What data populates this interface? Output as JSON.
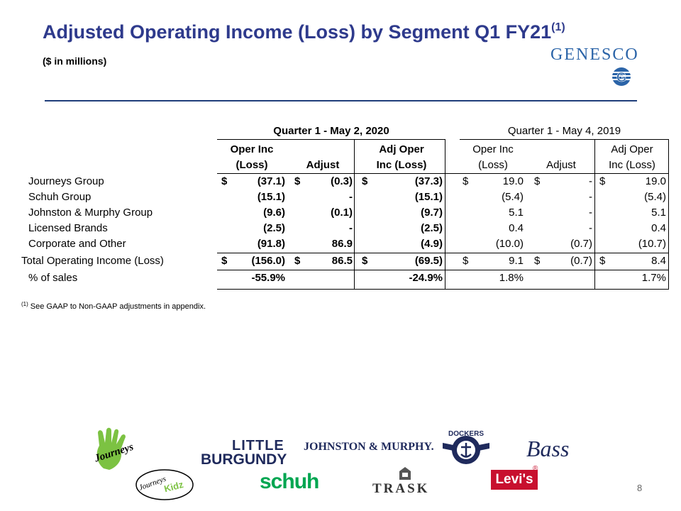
{
  "slide": {
    "title": "Adjusted Operating Income (Loss) by Segment Q1 FY21",
    "title_sup": "(1)",
    "subtitle": "($ in millions)",
    "brand": "GENESCO",
    "page_number": "8",
    "footnote_marker": "(1)",
    "footnote": "See GAAP to Non-GAAP adjustments in appendix."
  },
  "table": {
    "group_2020": "Quarter 1 - May 2, 2020",
    "group_2019": "Quarter 1 - May 4, 2019",
    "h2020_col1_l1": "Oper Inc",
    "h2020_col1_l2": "(Loss)",
    "h2020_col2": "Adjust",
    "h2020_col3_l1": "Adj Oper",
    "h2020_col3_l2": "Inc (Loss)",
    "h2019_col1_l1": "Oper Inc",
    "h2019_col1_l2": "(Loss)",
    "h2019_col2": "Adjust",
    "h2019_col3_l1": "Adj Oper",
    "h2019_col3_l2": "Inc (Loss)",
    "rows": [
      {
        "label": "Journeys Group",
        "d1": "$",
        "v1": "(37.1)",
        "d2": "$",
        "v2": "(0.3)",
        "d3": "$",
        "v3": "(37.3)",
        "d4": "$",
        "v4": "19.0",
        "d5": "$",
        "v5": "-",
        "d6": "$",
        "v6": "19.0"
      },
      {
        "label": "Schuh Group",
        "d1": "",
        "v1": "(15.1)",
        "d2": "",
        "v2": "-",
        "d3": "",
        "v3": "(15.1)",
        "d4": "",
        "v4": "(5.4)",
        "d5": "",
        "v5": "-",
        "d6": "",
        "v6": "(5.4)"
      },
      {
        "label": "Johnston & Murphy Group",
        "d1": "",
        "v1": "(9.6)",
        "d2": "",
        "v2": "(0.1)",
        "d3": "",
        "v3": "(9.7)",
        "d4": "",
        "v4": "5.1",
        "d5": "",
        "v5": "-",
        "d6": "",
        "v6": "5.1"
      },
      {
        "label": "Licensed Brands",
        "d1": "",
        "v1": "(2.5)",
        "d2": "",
        "v2": "-",
        "d3": "",
        "v3": "(2.5)",
        "d4": "",
        "v4": "0.4",
        "d5": "",
        "v5": "-",
        "d6": "",
        "v6": "0.4"
      },
      {
        "label": "Corporate and Other",
        "d1": "",
        "v1": "(91.8)",
        "d2": "",
        "v2": "86.9",
        "d3": "",
        "v3": "(4.9)",
        "d4": "",
        "v4": "(10.0)",
        "d5": "",
        "v5": "(0.7)",
        "d6": "",
        "v6": "(10.7)"
      },
      {
        "label": "Total Operating Income (Loss)",
        "d1": "$",
        "v1": "(156.0)",
        "d2": "$",
        "v2": "86.5",
        "d3": "$",
        "v3": "(69.5)",
        "d4": "$",
        "v4": "9.1",
        "d5": "$",
        "v5": "(0.7)",
        "d6": "$",
        "v6": "8.4"
      },
      {
        "label": "% of sales",
        "d1": "",
        "v1": "-55.9%",
        "d2": "",
        "v2": "",
        "d3": "",
        "v3": "-24.9%",
        "d4": "",
        "v4": "1.8%",
        "d5": "",
        "v5": "",
        "d6": "",
        "v6": "1.7%"
      }
    ]
  },
  "logos": {
    "journeys": "Journeys",
    "journeys_kidz_1": "Journeys",
    "journeys_kidz_2": "Kidz",
    "little_burgundy_1": "LITTLE",
    "little_burgundy_2": "BURGUNDY",
    "johnston_murphy": "JOHNSTON & MURPHY.",
    "dockers": "DOCKERS",
    "bass": "Bass",
    "schuh": "schuh",
    "trask": "TRASK",
    "levis": "Levi's",
    "levis_reg": "®"
  },
  "colors": {
    "title": "#2e3a8c",
    "brand": "#2b64a8",
    "rule": "#1f3d7a",
    "journeys_green": "#7cc242",
    "levis_red": "#c8102e",
    "schuh_green": "#00a651",
    "navy_logo": "#1f2a5c"
  }
}
